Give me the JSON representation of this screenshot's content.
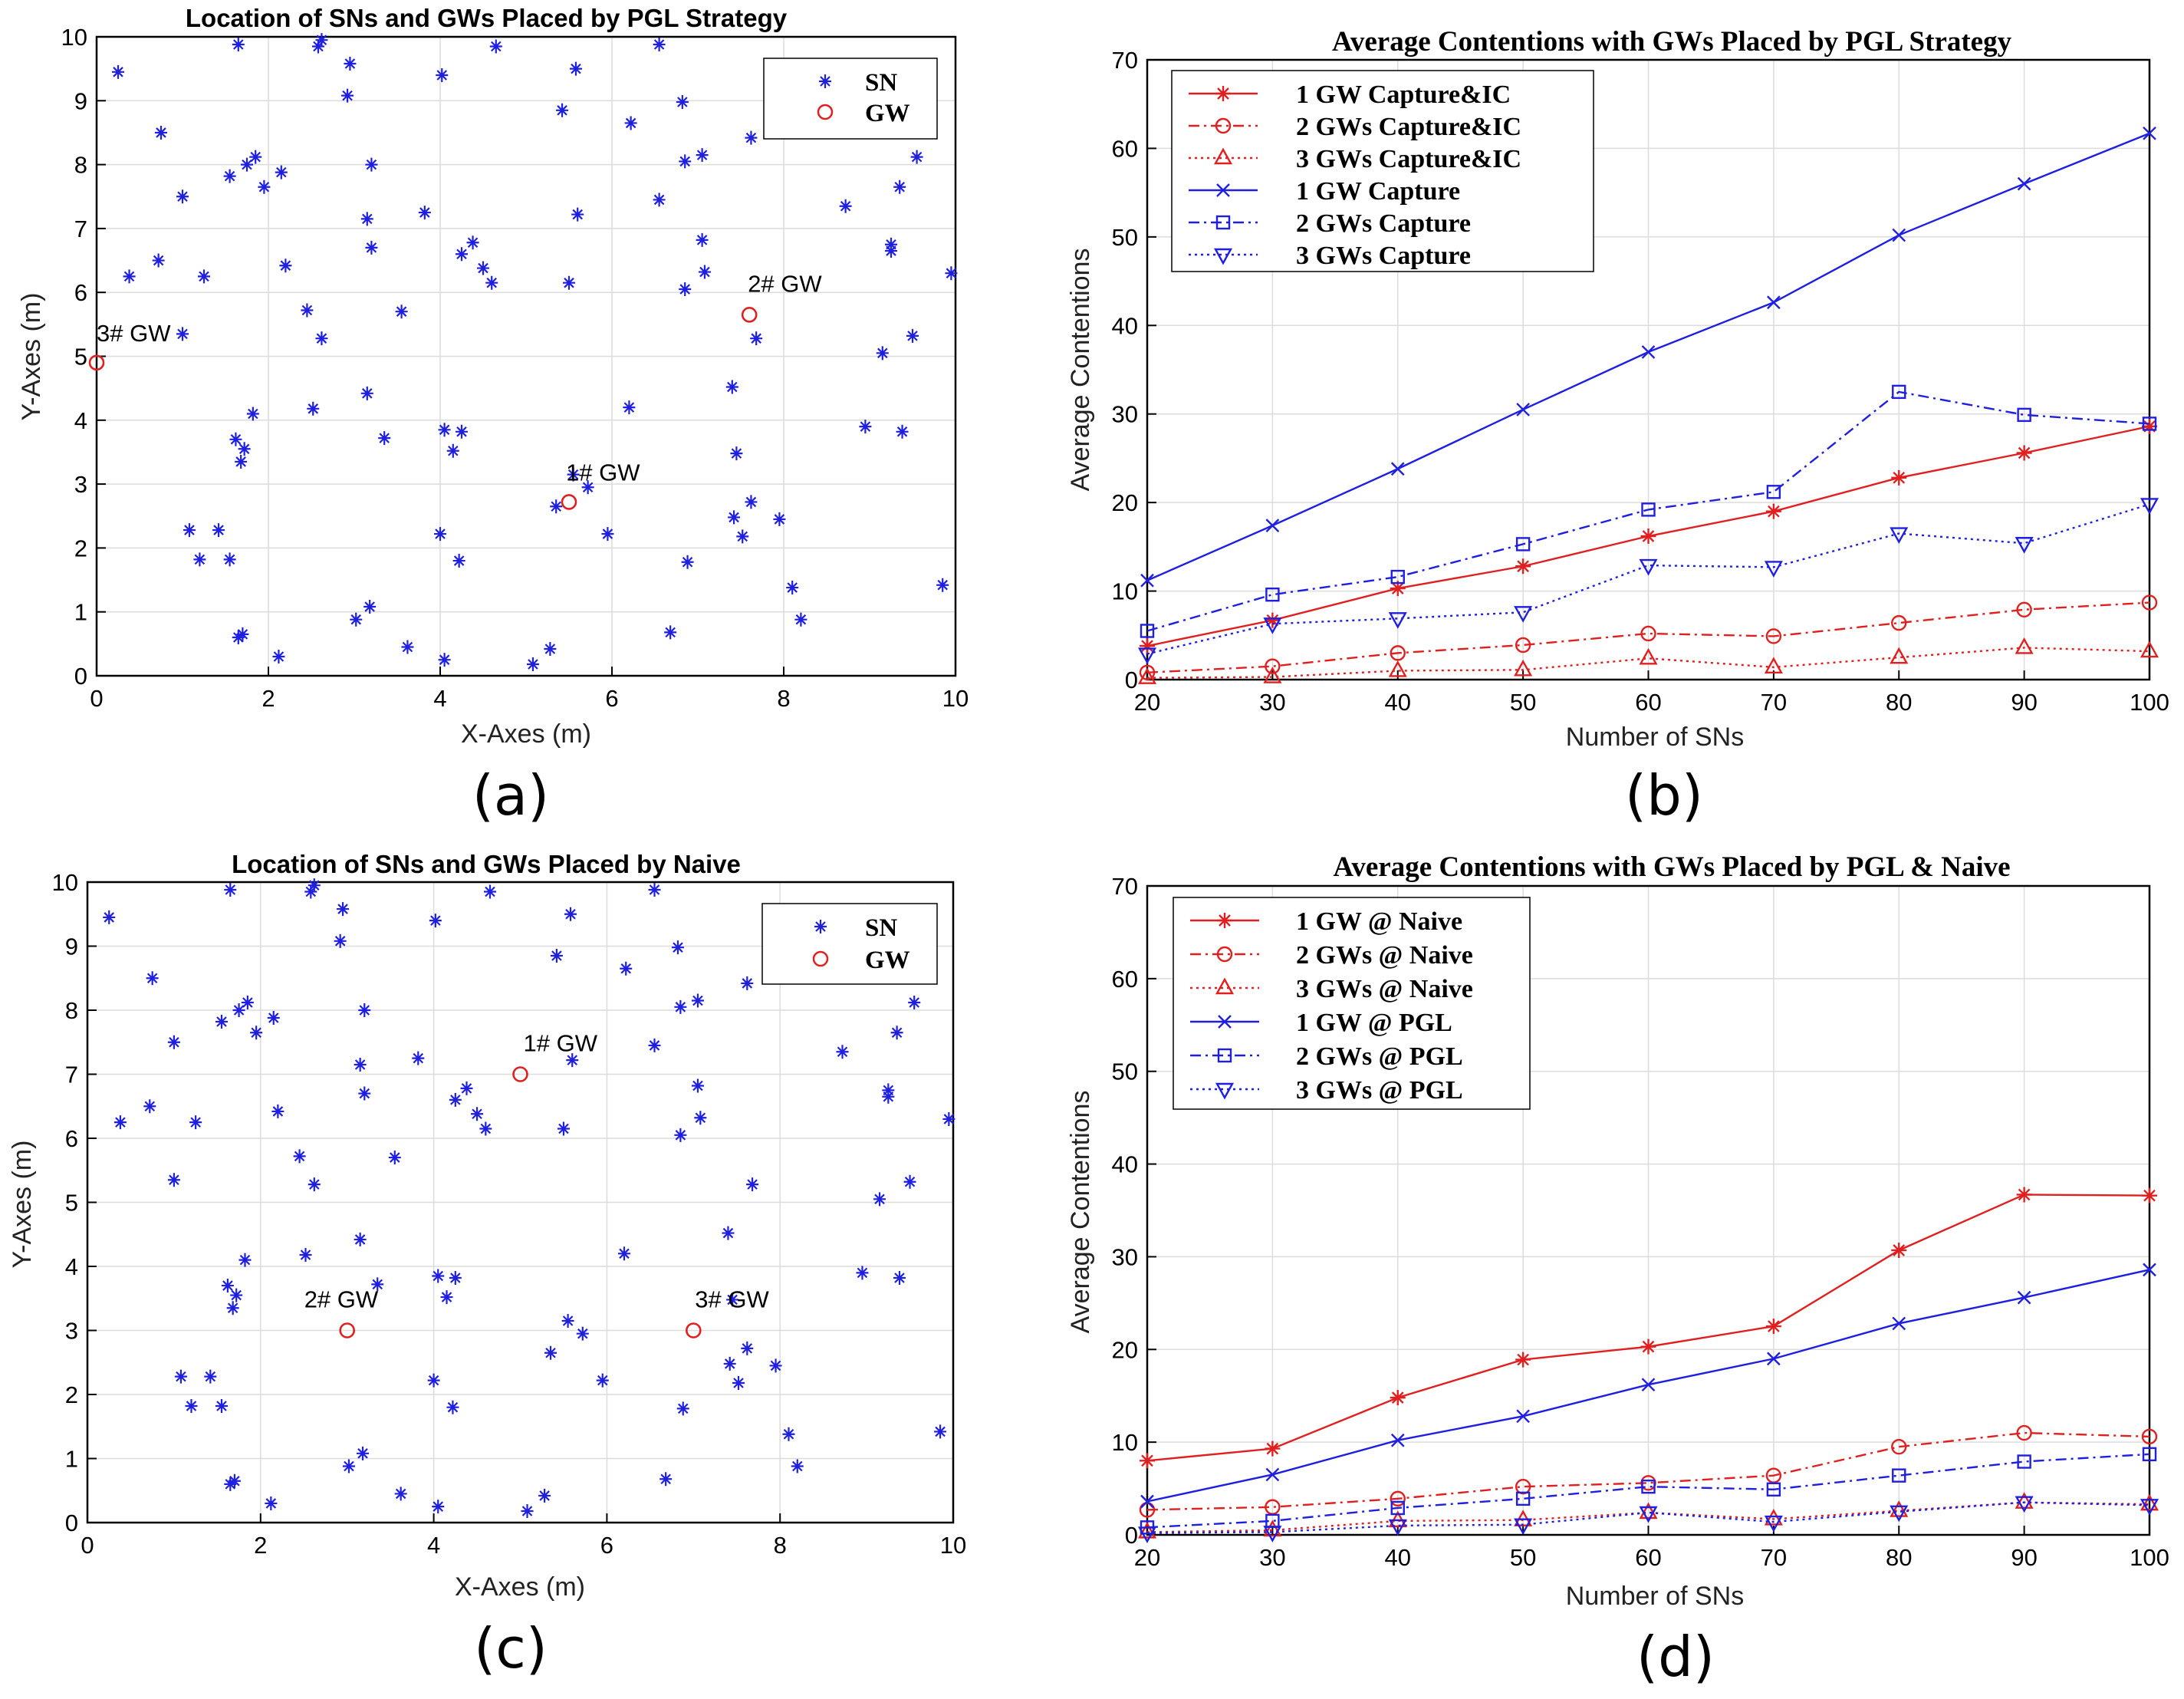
{
  "colors": {
    "sn": "#1f1fe0",
    "gw": "#e02020",
    "red": "#e02020",
    "blue": "#1f1fe0",
    "grid": "#dcdcdc"
  },
  "panels": {
    "a": {
      "label": "(a)"
    },
    "b": {
      "label": "(b)"
    },
    "c": {
      "label": "(c)"
    },
    "d": {
      "label": "(d)"
    }
  },
  "sn_positions": [
    [
      0.25,
      9.45
    ],
    [
      0.38,
      6.25
    ],
    [
      0.75,
      8.5
    ],
    [
      0.72,
      6.5
    ],
    [
      1.0,
      7.5
    ],
    [
      1.0,
      5.35
    ],
    [
      1.25,
      6.25
    ],
    [
      1.08,
      2.28
    ],
    [
      1.2,
      1.82
    ],
    [
      1.42,
      2.28
    ],
    [
      1.55,
      1.82
    ],
    [
      1.55,
      7.82
    ],
    [
      1.65,
      9.88
    ],
    [
      1.75,
      8.0
    ],
    [
      1.85,
      8.12
    ],
    [
      1.95,
      7.65
    ],
    [
      2.15,
      7.88
    ],
    [
      2.2,
      6.42
    ],
    [
      1.62,
      3.7
    ],
    [
      1.72,
      3.55
    ],
    [
      1.68,
      3.35
    ],
    [
      1.82,
      4.1
    ],
    [
      1.65,
      0.6
    ],
    [
      1.7,
      0.65
    ],
    [
      2.12,
      0.3
    ],
    [
      2.45,
      5.72
    ],
    [
      2.62,
      5.28
    ],
    [
      2.52,
      4.18
    ],
    [
      2.58,
      9.85
    ],
    [
      2.62,
      9.95
    ],
    [
      2.95,
      9.58
    ],
    [
      2.92,
      9.08
    ],
    [
      3.2,
      8.0
    ],
    [
      3.15,
      7.15
    ],
    [
      3.2,
      6.7
    ],
    [
      3.15,
      4.42
    ],
    [
      3.35,
      3.72
    ],
    [
      3.18,
      1.08
    ],
    [
      3.02,
      0.88
    ],
    [
      3.55,
      5.7
    ],
    [
      3.62,
      0.45
    ],
    [
      3.82,
      7.25
    ],
    [
      4.02,
      9.4
    ],
    [
      4.05,
      3.85
    ],
    [
      4.15,
      3.52
    ],
    [
      4.25,
      3.82
    ],
    [
      4.25,
      6.6
    ],
    [
      4.38,
      6.78
    ],
    [
      4.5,
      6.38
    ],
    [
      4.6,
      6.15
    ],
    [
      4.65,
      9.85
    ],
    [
      4.0,
      2.22
    ],
    [
      4.22,
      1.8
    ],
    [
      4.05,
      0.25
    ],
    [
      5.08,
      0.18
    ],
    [
      5.28,
      0.42
    ],
    [
      5.42,
      8.85
    ],
    [
      5.58,
      9.5
    ],
    [
      5.6,
      7.22
    ],
    [
      5.5,
      6.15
    ],
    [
      5.55,
      3.15
    ],
    [
      5.72,
      2.95
    ],
    [
      5.35,
      2.65
    ],
    [
      5.95,
      2.22
    ],
    [
      6.22,
      8.65
    ],
    [
      6.55,
      9.88
    ],
    [
      6.55,
      7.45
    ],
    [
      6.2,
      4.2
    ],
    [
      6.82,
      8.98
    ],
    [
      6.85,
      8.05
    ],
    [
      6.85,
      6.05
    ],
    [
      6.88,
      1.78
    ],
    [
      6.68,
      0.68
    ],
    [
      7.05,
      8.15
    ],
    [
      7.05,
      6.82
    ],
    [
      7.08,
      6.32
    ],
    [
      7.4,
      4.52
    ],
    [
      7.45,
      3.48
    ],
    [
      7.42,
      2.48
    ],
    [
      7.52,
      2.18
    ],
    [
      7.62,
      2.72
    ],
    [
      7.62,
      8.42
    ],
    [
      7.68,
      5.28
    ],
    [
      7.95,
      2.45
    ],
    [
      8.1,
      1.38
    ],
    [
      8.2,
      0.88
    ],
    [
      8.72,
      7.35
    ],
    [
      8.95,
      3.9
    ],
    [
      9.15,
      5.05
    ],
    [
      9.25,
      6.65
    ],
    [
      9.25,
      6.75
    ],
    [
      9.35,
      7.65
    ],
    [
      9.38,
      3.82
    ],
    [
      9.55,
      8.12
    ],
    [
      9.5,
      5.32
    ],
    [
      9.85,
      1.42
    ],
    [
      9.95,
      6.3
    ]
  ],
  "chart_data": [
    {
      "type": "scatter",
      "title": "Location of SNs and GWs Placed by PGL Strategy",
      "xlabel": "X-Axes (m)",
      "ylabel": "Y-Axes (m)",
      "xlim": [
        0,
        10
      ],
      "ylim": [
        0,
        10
      ],
      "xticks": [
        "0",
        "2",
        "4",
        "6",
        "8",
        "10"
      ],
      "yticks": [
        "0",
        "1",
        "2",
        "3",
        "4",
        "5",
        "6",
        "7",
        "8",
        "9",
        "10"
      ],
      "legend": [
        "SN",
        "GW"
      ],
      "gateways": [
        {
          "label": "1# GW",
          "x": 5.5,
          "y": 2.72
        },
        {
          "label": "2# GW",
          "x": 7.6,
          "y": 5.65
        },
        {
          "label": "3# GW",
          "x": 0.0,
          "y": 4.9
        }
      ]
    },
    {
      "type": "line",
      "title": "Average Contentions with GWs Placed by PGL Strategy",
      "xlabel": "Number of SNs",
      "ylabel": "Average Contentions",
      "xlim": [
        20,
        100
      ],
      "ylim": [
        0,
        70
      ],
      "x": [
        20,
        30,
        40,
        50,
        60,
        70,
        80,
        90,
        100
      ],
      "xticks": [
        "20",
        "30",
        "40",
        "50",
        "60",
        "70",
        "80",
        "90",
        "100"
      ],
      "yticks": [
        "0",
        "10",
        "20",
        "30",
        "40",
        "50",
        "60",
        "70"
      ],
      "series": [
        {
          "name": "1 GW Capture&IC",
          "color": "red",
          "marker": "star",
          "dash": "solid",
          "values": [
            3.8,
            6.7,
            10.3,
            12.8,
            16.2,
            19.0,
            22.8,
            25.6,
            28.6
          ]
        },
        {
          "name": "2 GWs Capture&IC",
          "color": "red",
          "marker": "circle",
          "dash": "dashdot",
          "values": [
            0.8,
            1.5,
            3.0,
            3.9,
            5.2,
            4.9,
            6.4,
            7.9,
            8.7
          ]
        },
        {
          "name": "3 GWs Capture&IC",
          "color": "red",
          "marker": "triangle-up",
          "dash": "dotted",
          "values": [
            0.2,
            0.3,
            1.0,
            1.1,
            2.4,
            1.4,
            2.5,
            3.6,
            3.2
          ]
        },
        {
          "name": "1 GW Capture",
          "color": "blue",
          "marker": "x",
          "dash": "solid",
          "values": [
            11.2,
            17.4,
            23.8,
            30.5,
            37.0,
            42.6,
            50.2,
            56.0,
            61.7
          ]
        },
        {
          "name": "2 GWs Capture",
          "color": "blue",
          "marker": "square",
          "dash": "dashdot",
          "values": [
            5.5,
            9.6,
            11.6,
            15.3,
            19.2,
            21.2,
            32.5,
            29.9,
            28.9
          ]
        },
        {
          "name": "3 GWs Capture",
          "color": "blue",
          "marker": "triangle-down",
          "dash": "dotted",
          "values": [
            2.9,
            6.3,
            6.9,
            7.6,
            12.9,
            12.7,
            16.5,
            15.4,
            19.8
          ]
        }
      ]
    },
    {
      "type": "scatter",
      "title": "Location of SNs and GWs Placed by Naive",
      "xlabel": "X-Axes (m)",
      "ylabel": "Y-Axes (m)",
      "xlim": [
        0,
        10
      ],
      "ylim": [
        0,
        10
      ],
      "xticks": [
        "0",
        "2",
        "4",
        "6",
        "8",
        "10"
      ],
      "yticks": [
        "0",
        "1",
        "2",
        "3",
        "4",
        "5",
        "6",
        "7",
        "8",
        "9",
        "10"
      ],
      "legend": [
        "SN",
        "GW"
      ],
      "gateways": [
        {
          "label": "1# GW",
          "x": 5.0,
          "y": 7.0
        },
        {
          "label": "2# GW",
          "x": 3.0,
          "y": 3.0
        },
        {
          "label": "3# GW",
          "x": 7.0,
          "y": 3.0
        }
      ]
    },
    {
      "type": "line",
      "title": "Average Contentions with GWs Placed by PGL & Naive",
      "xlabel": "Number of SNs",
      "ylabel": "Average Contentions",
      "xlim": [
        20,
        100
      ],
      "ylim": [
        0,
        70
      ],
      "x": [
        20,
        30,
        40,
        50,
        60,
        70,
        80,
        90,
        100
      ],
      "xticks": [
        "20",
        "30",
        "40",
        "50",
        "60",
        "70",
        "80",
        "90",
        "100"
      ],
      "yticks": [
        "0",
        "10",
        "20",
        "30",
        "40",
        "50",
        "60",
        "70"
      ],
      "series": [
        {
          "name": "1 GW @ Naive",
          "color": "red",
          "marker": "star",
          "dash": "solid",
          "values": [
            8.0,
            9.3,
            14.8,
            18.9,
            20.3,
            22.5,
            30.7,
            36.7,
            36.6
          ]
        },
        {
          "name": "2 GWs @ Naive",
          "color": "red",
          "marker": "circle",
          "dash": "dashdot",
          "values": [
            2.7,
            3.0,
            3.9,
            5.2,
            5.6,
            6.4,
            9.5,
            11.0,
            10.6
          ]
        },
        {
          "name": "3 GWs @ Naive",
          "color": "red",
          "marker": "triangle-up",
          "dash": "dotted",
          "values": [
            0.3,
            0.5,
            1.5,
            1.6,
            2.4,
            1.7,
            2.6,
            3.5,
            3.3
          ]
        },
        {
          "name": "1 GW @ PGL",
          "color": "blue",
          "marker": "x",
          "dash": "solid",
          "values": [
            3.6,
            6.5,
            10.2,
            12.8,
            16.2,
            19.0,
            22.8,
            25.6,
            28.6
          ]
        },
        {
          "name": "2 GWs @ PGL",
          "color": "blue",
          "marker": "square",
          "dash": "dashdot",
          "values": [
            0.8,
            1.5,
            2.9,
            3.9,
            5.2,
            4.9,
            6.4,
            7.9,
            8.7
          ]
        },
        {
          "name": "3 GWs @ PGL",
          "color": "blue",
          "marker": "triangle-down",
          "dash": "dotted",
          "values": [
            0.2,
            0.3,
            1.0,
            1.1,
            2.4,
            1.4,
            2.5,
            3.5,
            3.2
          ]
        }
      ]
    }
  ]
}
